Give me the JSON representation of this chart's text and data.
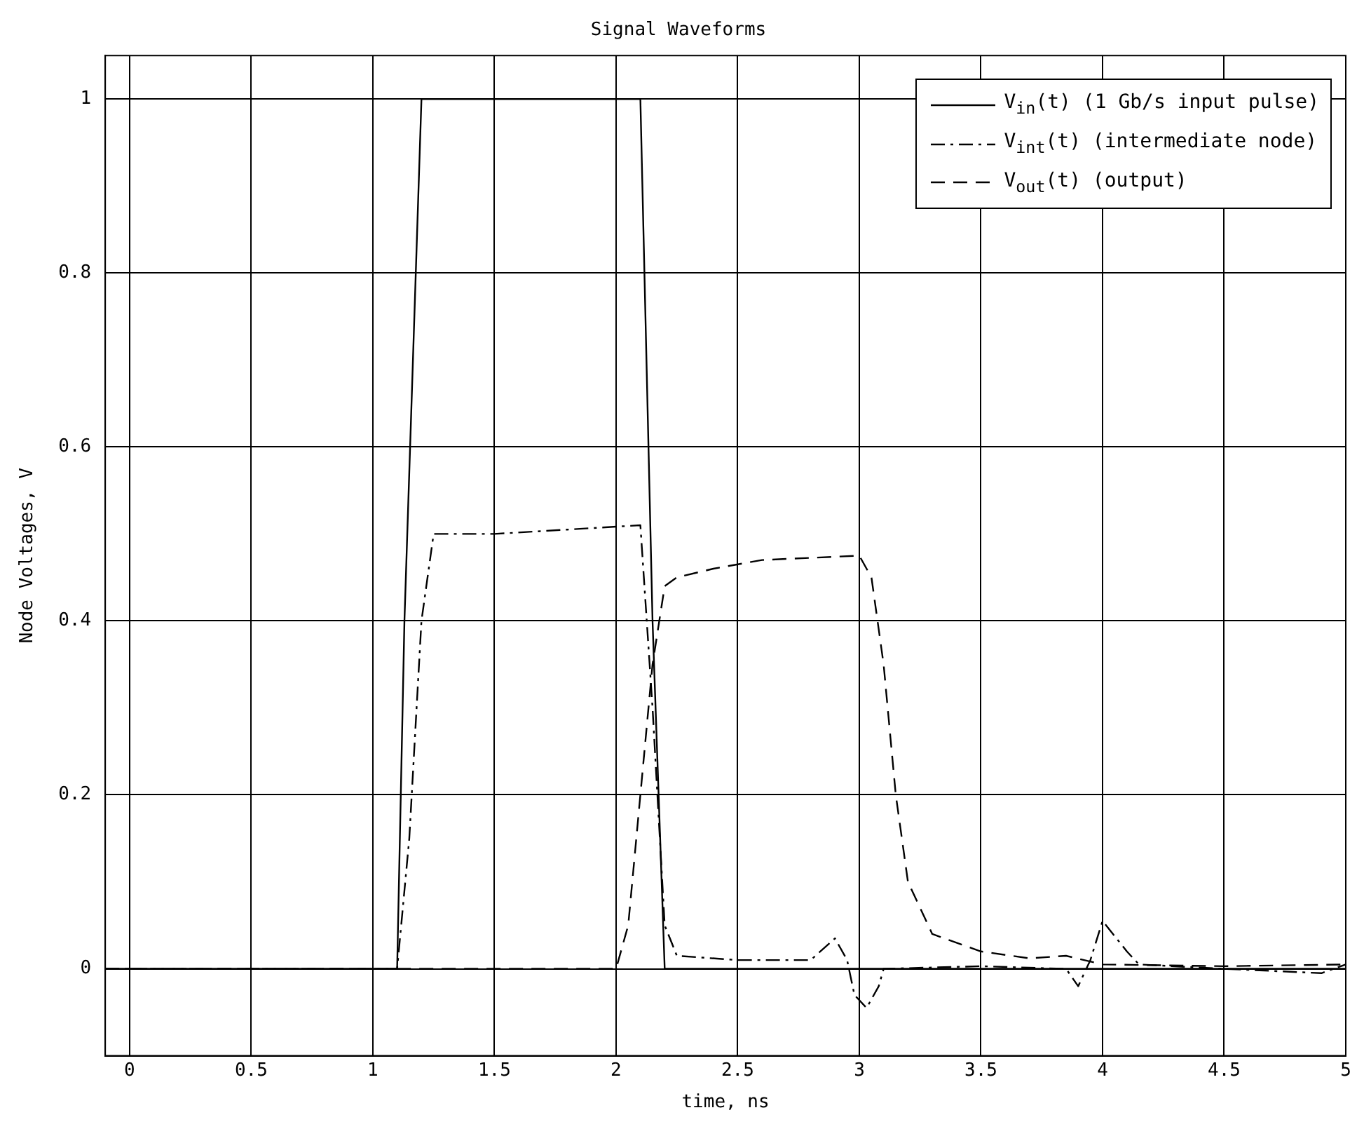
{
  "chart_data": {
    "type": "line",
    "title": "Signal Waveforms",
    "xlabel": "time, ns",
    "ylabel": "Node Voltages, V",
    "xlim": [
      -0.1,
      5
    ],
    "ylim": [
      -0.1,
      1.05
    ],
    "xticks": [
      0,
      0.5,
      1,
      1.5,
      2,
      2.5,
      3,
      3.5,
      4,
      4.5,
      5
    ],
    "yticks": [
      0,
      0.2,
      0.4,
      0.6,
      0.8,
      1
    ],
    "grid": true,
    "legend": "top right",
    "marker": "none",
    "series": [
      {
        "name": "V$_{in}$(t) (1 Gb/s input pulse)",
        "color": "#000000",
        "line_style": "solid",
        "x": [
          -0.1,
          1.1,
          1.13,
          1.2,
          2.1,
          2.15,
          2.2,
          5
        ],
        "values": [
          0,
          0,
          0.4,
          1,
          1,
          0.4,
          0,
          0
        ]
      },
      {
        "name": "V$_{int}$(t) (intermediate node)",
        "color": "#000000",
        "line_style": "dashdot",
        "x": [
          -0.1,
          1.1,
          1.15,
          1.2,
          1.25,
          1.3,
          1.5,
          1.8,
          2.1,
          2.15,
          2.2,
          2.25,
          2.5,
          2.8,
          2.9,
          2.95,
          2.98,
          3.03,
          3.08,
          3.1,
          3.5,
          3.85,
          3.9,
          3.95,
          4.0,
          4.1,
          4.15,
          4.5,
          4.9,
          5
        ],
        "values": [
          0,
          0,
          0.15,
          0.4,
          0.5,
          0.5,
          0.5,
          0.505,
          0.51,
          0.3,
          0.05,
          0.015,
          0.01,
          0.01,
          0.035,
          0.01,
          -0.03,
          -0.045,
          -0.02,
          0,
          0.003,
          0,
          -0.02,
          0.01,
          0.055,
          0.02,
          0.005,
          0,
          -0.005,
          0.005
        ]
      },
      {
        "name": "V$_{out}$(t) (output)",
        "color": "#000000",
        "line_style": "dashed",
        "x": [
          -0.1,
          2.0,
          2.05,
          2.1,
          2.15,
          2.2,
          2.25,
          2.4,
          2.6,
          3.0,
          3.05,
          3.1,
          3.15,
          3.2,
          3.3,
          3.5,
          3.7,
          3.85,
          4.0,
          4.5,
          5
        ],
        "values": [
          0,
          0,
          0.05,
          0.2,
          0.35,
          0.44,
          0.45,
          0.46,
          0.47,
          0.475,
          0.45,
          0.35,
          0.2,
          0.1,
          0.04,
          0.02,
          0.012,
          0.015,
          0.005,
          0.003,
          0.005
        ]
      }
    ]
  }
}
